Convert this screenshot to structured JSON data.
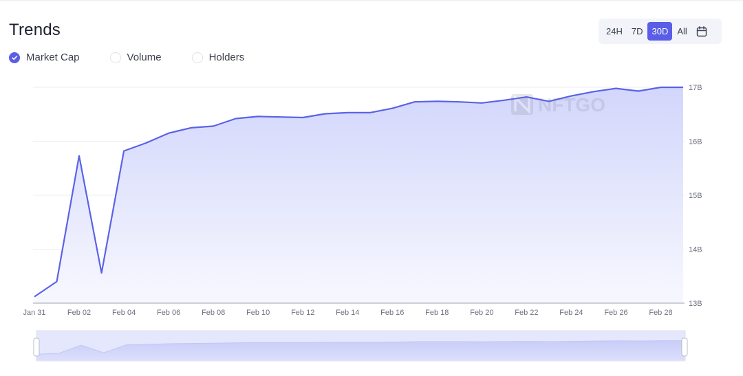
{
  "header": {
    "title": "Trends"
  },
  "time_range": {
    "options": [
      "24H",
      "7D",
      "30D",
      "All"
    ],
    "selected": "30D",
    "calendar_icon": "calendar-icon"
  },
  "legend": {
    "items": [
      {
        "label": "Market Cap",
        "checked": true
      },
      {
        "label": "Volume",
        "checked": false
      },
      {
        "label": "Holders",
        "checked": false
      }
    ]
  },
  "watermark": "NFTGO",
  "colors": {
    "accent": "#5a5ee6",
    "line": "#5b62e6",
    "area_top": "#d4d8fb",
    "grid": "#eceef2"
  },
  "chart_data": {
    "type": "area",
    "title": "",
    "xlabel": "",
    "ylabel": "",
    "x": [
      "Jan 31",
      "Feb 01",
      "Feb 02",
      "Feb 03",
      "Feb 04",
      "Feb 05",
      "Feb 06",
      "Feb 07",
      "Feb 08",
      "Feb 09",
      "Feb 10",
      "Feb 11",
      "Feb 12",
      "Feb 13",
      "Feb 14",
      "Feb 15",
      "Feb 16",
      "Feb 17",
      "Feb 18",
      "Feb 19",
      "Feb 20",
      "Feb 21",
      "Feb 22",
      "Feb 23",
      "Feb 24",
      "Feb 25",
      "Feb 26",
      "Feb 27",
      "Feb 28",
      "Mar 01"
    ],
    "x_tick_labels": [
      "Jan 31",
      "Feb 02",
      "Feb 04",
      "Feb 06",
      "Feb 08",
      "Feb 10",
      "Feb 12",
      "Feb 14",
      "Feb 16",
      "Feb 18",
      "Feb 20",
      "Feb 22",
      "Feb 24",
      "Feb 26",
      "Feb 28"
    ],
    "series": [
      {
        "values": [
          13.12,
          13.4,
          15.73,
          13.56,
          15.82,
          15.97,
          16.15,
          16.25,
          16.28,
          16.42,
          16.46,
          16.45,
          16.44,
          16.51,
          16.53,
          16.53,
          16.61,
          16.73,
          16.74,
          16.73,
          16.71,
          16.76,
          16.82,
          16.74,
          16.84,
          16.92,
          16.98,
          16.93,
          17.0,
          17.0
        ]
      }
    ],
    "y_ticks": [
      "13B",
      "14B",
      "15B",
      "16B",
      "17B"
    ],
    "ylim": [
      13,
      17
    ],
    "grid": true,
    "y_axis_side": "right"
  }
}
